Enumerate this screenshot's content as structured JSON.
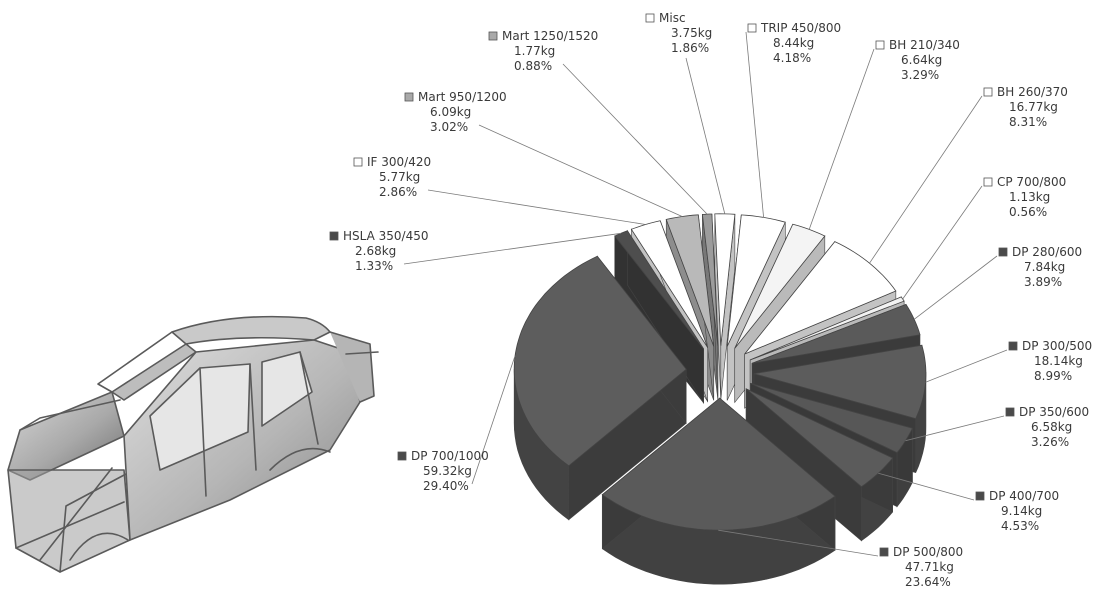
{
  "chart_data": {
    "type": "pie",
    "unit": "kg",
    "title": "",
    "series": [
      {
        "label": "Misc",
        "mass": "3.75kg",
        "percent": "1.86%",
        "value": 1.86,
        "marker": "hollow",
        "color": "#ffffff"
      },
      {
        "label": "TRIP 450/800",
        "mass": "8.44kg",
        "percent": "4.18%",
        "value": 4.18,
        "marker": "hollow",
        "color": "#ffffff"
      },
      {
        "label": "BH 210/340",
        "mass": "6.64kg",
        "percent": "3.29%",
        "value": 3.29,
        "marker": "hollow",
        "color": "#f4f4f4"
      },
      {
        "label": "BH 260/370",
        "mass": "16.77kg",
        "percent": "8.31%",
        "value": 8.31,
        "marker": "hollow",
        "color": "#ffffff"
      },
      {
        "label": "CP 700/800",
        "mass": "1.13kg",
        "percent": "0.56%",
        "value": 0.56,
        "marker": "hollow",
        "color": "#f2f2f2"
      },
      {
        "label": "DP 280/600",
        "mass": "7.84kg",
        "percent": "3.89%",
        "value": 3.89,
        "marker": "filled",
        "color": "#5a5a5a"
      },
      {
        "label": "DP 300/500",
        "mass": "18.14kg",
        "percent": "8.99%",
        "value": 8.99,
        "marker": "filled",
        "color": "#5c5c5c"
      },
      {
        "label": "DP 350/600",
        "mass": "6.58kg",
        "percent": "3.26%",
        "value": 3.26,
        "marker": "filled",
        "color": "#575757"
      },
      {
        "label": "DP 400/700",
        "mass": "9.14kg",
        "percent": "4.53%",
        "value": 4.53,
        "marker": "filled",
        "color": "#5b5b5b"
      },
      {
        "label": "DP 500/800",
        "mass": "47.71kg",
        "percent": "23.64%",
        "value": 23.64,
        "marker": "filled",
        "color": "#5a5a5a"
      },
      {
        "label": "DP 700/1000",
        "mass": "59.32kg",
        "percent": "29.40%",
        "value": 29.4,
        "marker": "filled",
        "color": "#5d5d5d"
      },
      {
        "label": "HSLA 350/450",
        "mass": "2.68kg",
        "percent": "1.33%",
        "value": 1.33,
        "marker": "filled",
        "color": "#4e4e4e"
      },
      {
        "label": "IF 300/420",
        "mass": "5.77kg",
        "percent": "2.86%",
        "value": 2.86,
        "marker": "hollow",
        "color": "#ffffff"
      },
      {
        "label": "Mart 950/1200",
        "mass": "6.09kg",
        "percent": "3.02%",
        "value": 3.02,
        "marker": "grey",
        "color": "#b9b9b9"
      },
      {
        "label": "Mart 1250/1520",
        "mass": "1.77kg",
        "percent": "0.88%",
        "value": 0.88,
        "marker": "grey",
        "color": "#9c9c9c"
      }
    ],
    "legend": "none",
    "data_labels": "outside with leader lines"
  },
  "illustration": {
    "subject": "car body-in-white",
    "icon": "car-body-icon"
  }
}
